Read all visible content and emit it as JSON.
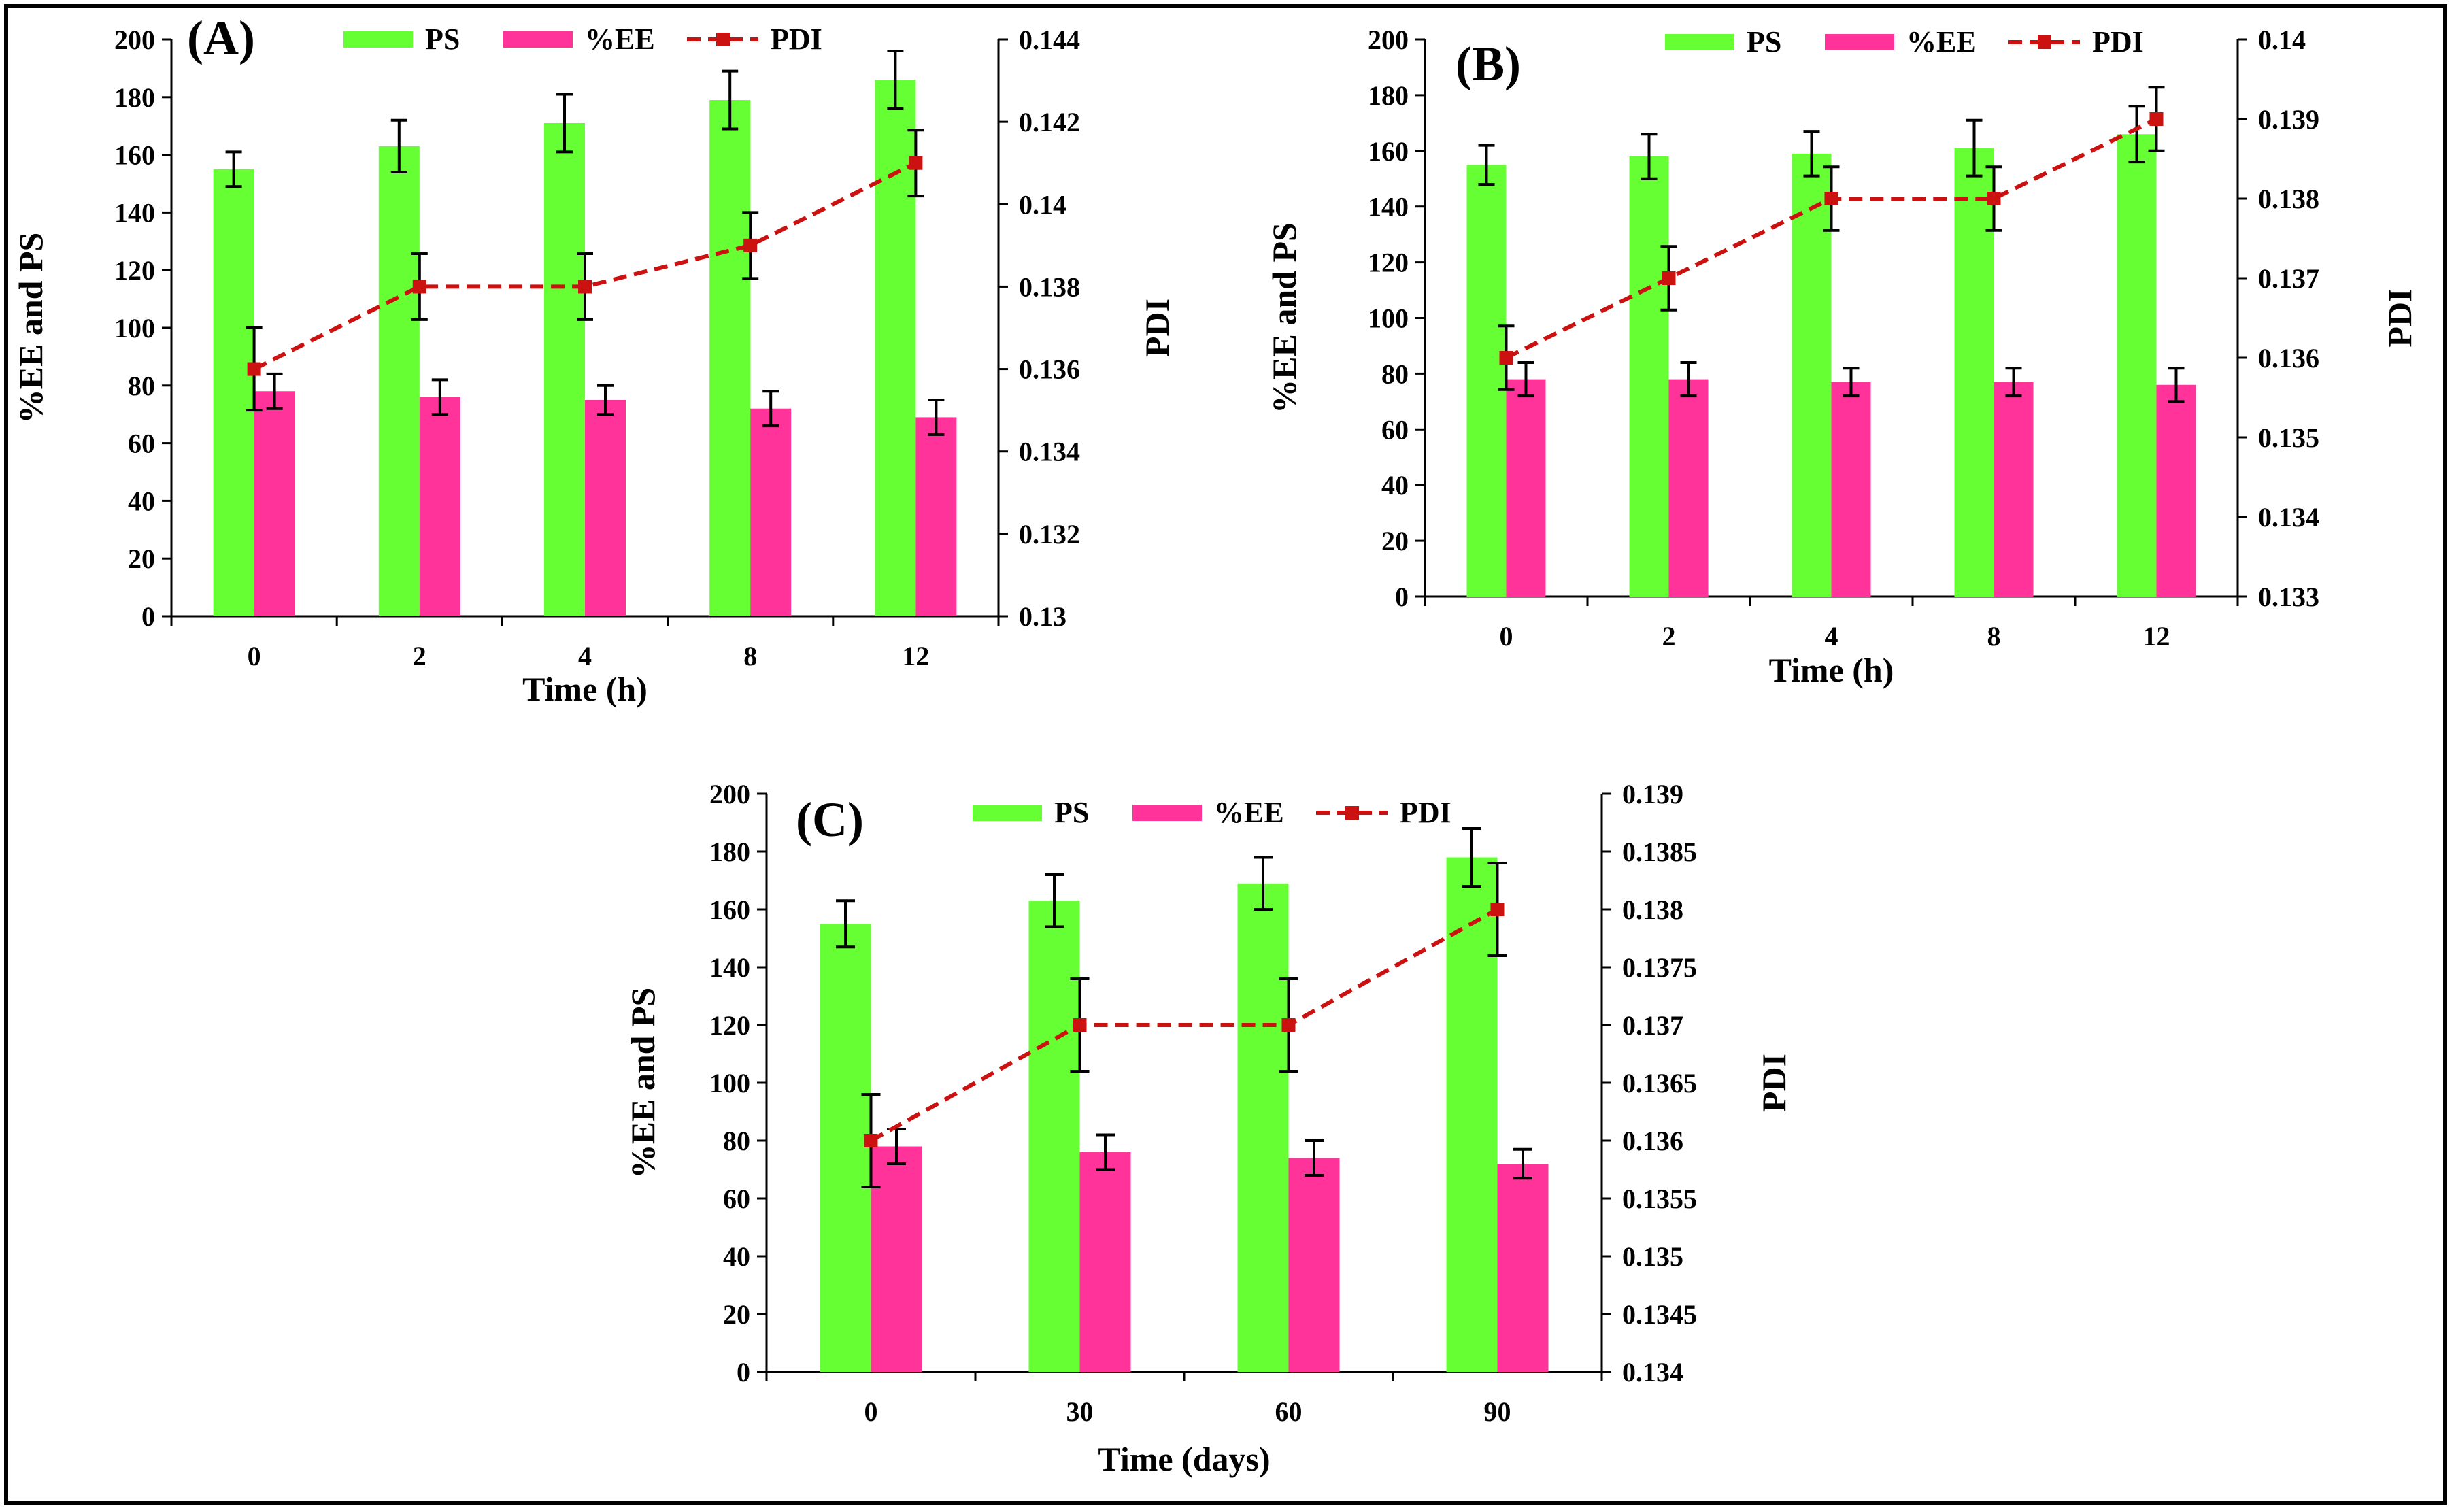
{
  "colors": {
    "ps": "#66ff33",
    "ee": "#ff3399",
    "pdi": "#cc1111",
    "axis": "#000000"
  },
  "legend": {
    "ps": "PS",
    "ee": "%EE",
    "pdi": "PDI"
  },
  "chart_data": [
    {
      "type": "bar",
      "panel_label": "(A)",
      "title": "",
      "xlabel": "Time (h)",
      "ylabel": "%EE and PS",
      "y2label": "PDI",
      "categories": [
        "0",
        "2",
        "4",
        "8",
        "12"
      ],
      "ylim": [
        0,
        200
      ],
      "yticks": [
        "0",
        "20",
        "40",
        "60",
        "80",
        "100",
        "120",
        "140",
        "160",
        "180",
        "200"
      ],
      "y2lim": [
        0.13,
        0.144
      ],
      "y2ticks": [
        "0.13",
        "0.132",
        "0.134",
        "0.136",
        "0.138",
        "0.14",
        "0.142",
        "0.144"
      ],
      "series": [
        {
          "name": "PS",
          "type": "bar",
          "values": [
            155,
            163,
            171,
            179,
            186
          ],
          "errors": [
            6,
            9,
            10,
            10,
            10
          ]
        },
        {
          "name": "%EE",
          "type": "bar",
          "values": [
            78,
            76,
            75,
            72,
            69
          ],
          "errors": [
            6,
            6,
            5,
            6,
            6
          ]
        },
        {
          "name": "PDI",
          "type": "line",
          "axis": "right",
          "values": [
            0.136,
            0.138,
            0.138,
            0.139,
            0.141
          ],
          "errors": [
            0.001,
            0.0008,
            0.0008,
            0.0008,
            0.0008
          ]
        }
      ]
    },
    {
      "type": "bar",
      "panel_label": "(B)",
      "title": "",
      "xlabel": "Time (h)",
      "ylabel": "%EE and PS",
      "y2label": "PDI",
      "categories": [
        "0",
        "2",
        "4",
        "8",
        "12"
      ],
      "ylim": [
        0,
        200
      ],
      "yticks": [
        "0",
        "20",
        "40",
        "60",
        "80",
        "100",
        "120",
        "140",
        "160",
        "180",
        "200"
      ],
      "y2lim": [
        0.133,
        0.14
      ],
      "y2ticks": [
        "0.133",
        "0.134",
        "0.135",
        "0.136",
        "0.137",
        "0.138",
        "0.139",
        "0.14"
      ],
      "series": [
        {
          "name": "PS",
          "type": "bar",
          "values": [
            155,
            158,
            159,
            161,
            166
          ],
          "errors": [
            7,
            8,
            8,
            10,
            10
          ]
        },
        {
          "name": "%EE",
          "type": "bar",
          "values": [
            78,
            78,
            77,
            77,
            76
          ],
          "errors": [
            6,
            6,
            5,
            5,
            6
          ]
        },
        {
          "name": "PDI",
          "type": "line",
          "axis": "right",
          "values": [
            0.136,
            0.137,
            0.138,
            0.138,
            0.139
          ],
          "errors": [
            0.0004,
            0.0004,
            0.0004,
            0.0004,
            0.0004
          ]
        }
      ]
    },
    {
      "type": "bar",
      "panel_label": "(C)",
      "title": "",
      "xlabel": "Time (days)",
      "ylabel": "%EE and PS",
      "y2label": "PDI",
      "categories": [
        "0",
        "30",
        "60",
        "90"
      ],
      "ylim": [
        0,
        200
      ],
      "yticks": [
        "0",
        "20",
        "40",
        "60",
        "80",
        "100",
        "120",
        "140",
        "160",
        "180",
        "200"
      ],
      "y2lim": [
        0.134,
        0.139
      ],
      "y2ticks": [
        "0.134",
        "0.1345",
        "0.135",
        "0.1355",
        "0.136",
        "0.1365",
        "0.137",
        "0.1375",
        "0.138",
        "0.1385",
        "0.139"
      ],
      "series": [
        {
          "name": "PS",
          "type": "bar",
          "values": [
            155,
            163,
            169,
            178
          ],
          "errors": [
            8,
            9,
            9,
            10
          ]
        },
        {
          "name": "%EE",
          "type": "bar",
          "values": [
            78,
            76,
            74,
            72
          ],
          "errors": [
            6,
            6,
            6,
            5
          ]
        },
        {
          "name": "PDI",
          "type": "line",
          "axis": "right",
          "values": [
            0.136,
            0.137,
            0.137,
            0.138
          ],
          "errors": [
            0.0004,
            0.0004,
            0.0004,
            0.0004
          ]
        }
      ]
    }
  ]
}
